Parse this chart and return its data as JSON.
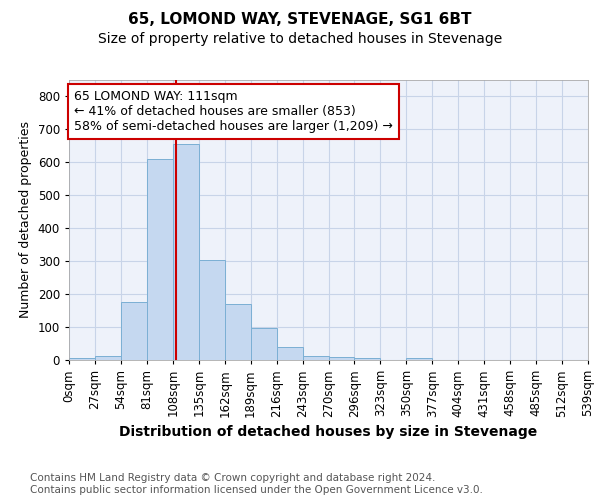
{
  "title": "65, LOMOND WAY, STEVENAGE, SG1 6BT",
  "subtitle": "Size of property relative to detached houses in Stevenage",
  "xlabel": "Distribution of detached houses by size in Stevenage",
  "ylabel": "Number of detached properties",
  "bar_values": [
    5,
    13,
    175,
    610,
    655,
    305,
    170,
    97,
    38,
    13,
    8,
    5,
    0,
    5,
    0,
    0,
    0,
    0,
    0,
    0
  ],
  "bin_labels": [
    "0sqm",
    "27sqm",
    "54sqm",
    "81sqm",
    "108sqm",
    "135sqm",
    "162sqm",
    "189sqm",
    "216sqm",
    "243sqm",
    "270sqm",
    "296sqm",
    "323sqm",
    "350sqm",
    "377sqm",
    "404sqm",
    "431sqm",
    "458sqm",
    "485sqm",
    "512sqm",
    "539sqm"
  ],
  "bar_color": "#c5d8f0",
  "bar_edge_color": "#7bafd4",
  "grid_color": "#c8d4e8",
  "background_color": "#eef2fa",
  "property_line_x": 111,
  "bin_width": 27,
  "annotation_line1": "65 LOMOND WAY: 111sqm",
  "annotation_line2": "← 41% of detached houses are smaller (853)",
  "annotation_line3": "58% of semi-detached houses are larger (1,209) →",
  "annotation_box_color": "#ffffff",
  "annotation_box_edge": "#cc0000",
  "vline_color": "#cc0000",
  "ylim": [
    0,
    850
  ],
  "yticks": [
    0,
    100,
    200,
    300,
    400,
    500,
    600,
    700,
    800
  ],
  "footer_text": "Contains HM Land Registry data © Crown copyright and database right 2024.\nContains public sector information licensed under the Open Government Licence v3.0.",
  "title_fontsize": 11,
  "subtitle_fontsize": 10,
  "xlabel_fontsize": 10,
  "ylabel_fontsize": 9,
  "tick_fontsize": 8.5,
  "annotation_fontsize": 9,
  "footer_fontsize": 7.5
}
